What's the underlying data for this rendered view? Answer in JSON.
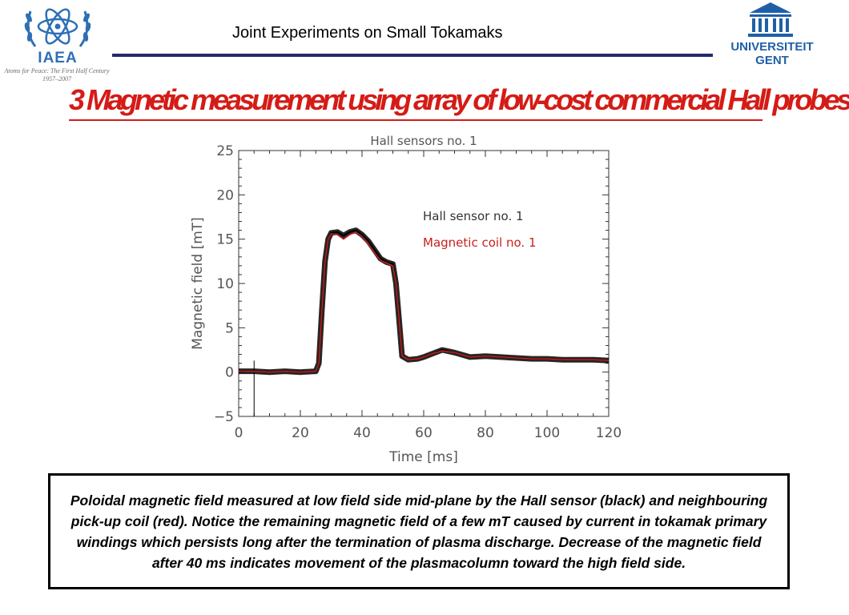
{
  "header": {
    "title": "Joint Experiments on Small Tokamaks",
    "left_logo": {
      "name": "IAEA",
      "tagline_1": "Atoms for Peace: The First Half Century",
      "tagline_2": "1957–2007"
    },
    "right_logo": {
      "line_1": "UNIVERSITEIT",
      "line_2": "GENT"
    },
    "rule_color": "#232a6b"
  },
  "slide_title": "3 Magnetic measurement using array of low-cost commercial Hall probes",
  "chart_data": {
    "type": "line",
    "title": "Hall sensors no. 1",
    "xlabel": "Time [ms]",
    "ylabel": "Magnetic field [mT]",
    "xlim": [
      0,
      120
    ],
    "ylim": [
      -5,
      25
    ],
    "x_ticks": [
      "0",
      "20",
      "40",
      "60",
      "80",
      "100",
      "120"
    ],
    "y_ticks": [
      "−5",
      "0",
      "5",
      "10",
      "15",
      "20",
      "25"
    ],
    "legend_position": "top-right",
    "series": [
      {
        "name": "Hall sensor no. 1",
        "color": "#000000",
        "x": [
          0,
          5,
          10,
          15,
          20,
          25,
          26,
          27,
          28,
          29,
          30,
          32,
          34,
          36,
          38,
          40,
          42,
          44,
          46,
          48,
          50,
          51,
          52,
          53,
          55,
          58,
          60,
          63,
          66,
          70,
          75,
          80,
          85,
          90,
          95,
          100,
          105,
          110,
          115,
          120
        ],
        "y": [
          0.1,
          0.1,
          0.0,
          0.1,
          0.0,
          0.1,
          1.0,
          7.0,
          12.5,
          15.0,
          15.7,
          15.8,
          15.4,
          15.8,
          16.0,
          15.5,
          14.8,
          13.8,
          12.8,
          12.4,
          12.2,
          10.0,
          6.0,
          1.8,
          1.4,
          1.5,
          1.7,
          2.1,
          2.5,
          2.2,
          1.7,
          1.8,
          1.7,
          1.6,
          1.5,
          1.5,
          1.4,
          1.4,
          1.4,
          1.3
        ]
      },
      {
        "name": "Magnetic coil no. 1",
        "color": "#c8201b",
        "x": [
          0,
          5,
          10,
          15,
          20,
          25,
          26,
          27,
          28,
          29,
          30,
          32,
          34,
          36,
          38,
          40,
          42,
          44,
          46,
          48,
          50,
          51,
          52,
          53,
          55,
          58,
          60,
          63,
          66,
          70,
          75,
          80,
          85,
          90,
          95,
          100,
          105,
          110,
          115,
          120
        ],
        "y": [
          0.1,
          0.1,
          0.0,
          0.1,
          0.0,
          0.1,
          1.0,
          7.0,
          12.5,
          15.0,
          15.6,
          15.5,
          15.0,
          15.5,
          15.8,
          15.3,
          14.5,
          13.5,
          12.6,
          12.3,
          12.0,
          10.0,
          6.0,
          1.8,
          1.4,
          1.5,
          1.7,
          2.1,
          2.4,
          2.2,
          1.7,
          1.8,
          1.7,
          1.6,
          1.5,
          1.5,
          1.4,
          1.4,
          1.4,
          1.3
        ]
      }
    ]
  },
  "caption": "Poloidal magnetic field measured at low field side mid-plane by the Hall sensor (black) and neighbouring pick-up coil (red). Notice the remaining magnetic field of a few mT caused by current in tokamak primary windings which persists long after the termination of plasma discharge. Decrease of the magnetic field after 40 ms indicates movement of the plasmacolumn toward the high field side."
}
